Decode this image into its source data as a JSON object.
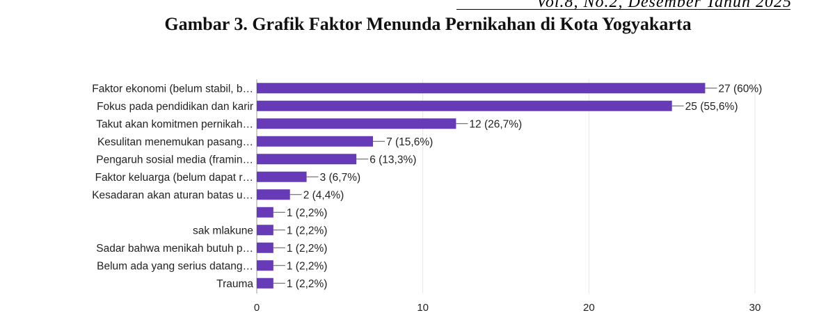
{
  "page": {
    "header_text": "Vol.8, No.2, Desember Tahun 2025",
    "figure_title": "Gambar 3. Grafik Faktor Menunda Pernikahan di Kota Yogyakarta"
  },
  "colors": {
    "bar": "#673AB7",
    "grid": "#e6e6e6",
    "axis": "#9e9e9e",
    "text": "#222222"
  },
  "chart_data": {
    "type": "bar",
    "orientation": "horizontal",
    "categories": [
      "Faktor ekonomi (belum stabil, b…",
      "Fokus pada pendidikan dan karir",
      "Takut akan komitmen pernikah…",
      "Kesulitan menemukan pasang…",
      "Pengaruh sosial media (framin…",
      "Faktor keluarga (belum dapat r…",
      "Kesadaran akan aturan batas u…",
      "",
      "sak mlakune",
      "Sadar bahwa menikah butuh p…",
      "Belum ada yang serius datang…",
      "Trauma"
    ],
    "values": [
      27,
      25,
      12,
      7,
      6,
      3,
      2,
      1,
      1,
      1,
      1,
      1
    ],
    "data_labels": [
      "27 (60%)",
      "25 (55,6%)",
      "12 (26,7%)",
      "7 (15,6%)",
      "6 (13,3%)",
      "3 (6,7%)",
      "2 (4,4%)",
      "1 (2,2%)",
      "1 (2,2%)",
      "1 (2,2%)",
      "1 (2,2%)",
      "1 (2,2%)"
    ],
    "xlim": [
      0,
      30
    ],
    "xticks": [
      0,
      10,
      20,
      30
    ],
    "xlabel": "",
    "ylabel": "",
    "grid": true,
    "legend": "none"
  }
}
